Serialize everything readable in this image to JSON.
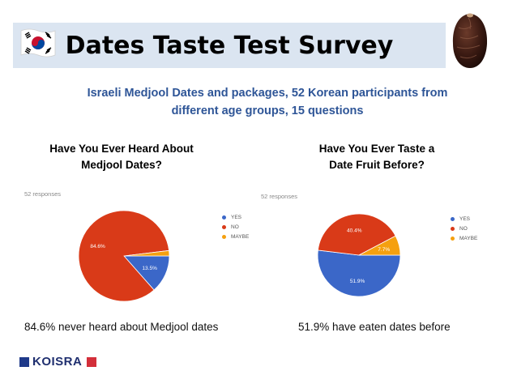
{
  "header": {
    "title": "Dates Taste Test Survey",
    "subtitle_line1": "Israeli  Medjool Dates and packages,  52 Korean participants from",
    "subtitle_line2": "different age groups, 15 questions"
  },
  "icons": {
    "flag": "south-korea-flag-icon",
    "photo": "date-fruit-icon"
  },
  "charts_meta": [
    {
      "question_line1": "Have You Ever Heard About",
      "question_line2": "Medjool Dates?",
      "responses": "52 responses",
      "conclusion": "84.6% never heard about Medjool dates"
    },
    {
      "question_line1": "Have You Ever Taste a",
      "question_line2": "Date Fruit Before?",
      "responses": "52 responses",
      "conclusion": "51.9% have eaten dates before"
    }
  ],
  "legend_labels": [
    "YES",
    "NO",
    "MAYBE"
  ],
  "colors": {
    "yes": "#3b67c8",
    "no": "#d93a18",
    "maybe": "#f5a00f",
    "title_band": "#dbe5f1",
    "subtitle": "#2e5597"
  },
  "chart_data": [
    {
      "type": "pie",
      "title": "Have You Ever Heard About Medjool Dates?",
      "categories": [
        "YES",
        "NO",
        "MAYBE"
      ],
      "values": [
        13.5,
        84.6,
        1.9
      ],
      "labels": [
        "13.5%",
        "84.6%",
        ""
      ]
    },
    {
      "type": "pie",
      "title": "Have You Ever Taste a Date Fruit Before?",
      "categories": [
        "YES",
        "NO",
        "MAYBE"
      ],
      "values": [
        51.9,
        40.4,
        7.7
      ],
      "labels": [
        "51.9%",
        "40.4%",
        "7.7%"
      ]
    }
  ],
  "brand": {
    "name": "KOISRA"
  }
}
